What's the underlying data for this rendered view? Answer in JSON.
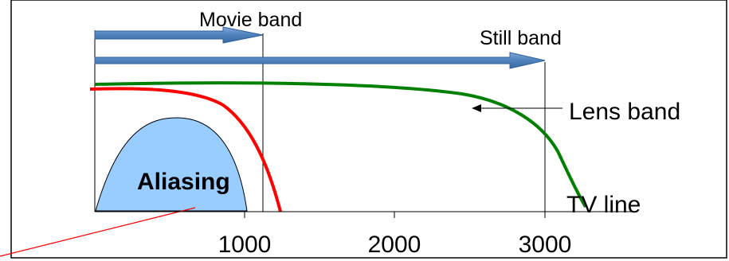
{
  "labels": {
    "movie_band": "Movie band",
    "still_band": "Still band",
    "lens_band": "Lens band",
    "aliasing": "Aliasing",
    "tv_line": "TV line"
  },
  "axis": {
    "ticks": [
      "1000",
      "2000",
      "3000"
    ],
    "tick_values": [
      1000,
      2000,
      3000
    ]
  },
  "colors": {
    "band_arrow": "#4f81bd",
    "lens_curve": "#008000",
    "aliasing_curve": "#ff0000",
    "aliasing_fill": "#99ccff",
    "pointer_line": "#ff0000",
    "frame": "#000000"
  }
}
